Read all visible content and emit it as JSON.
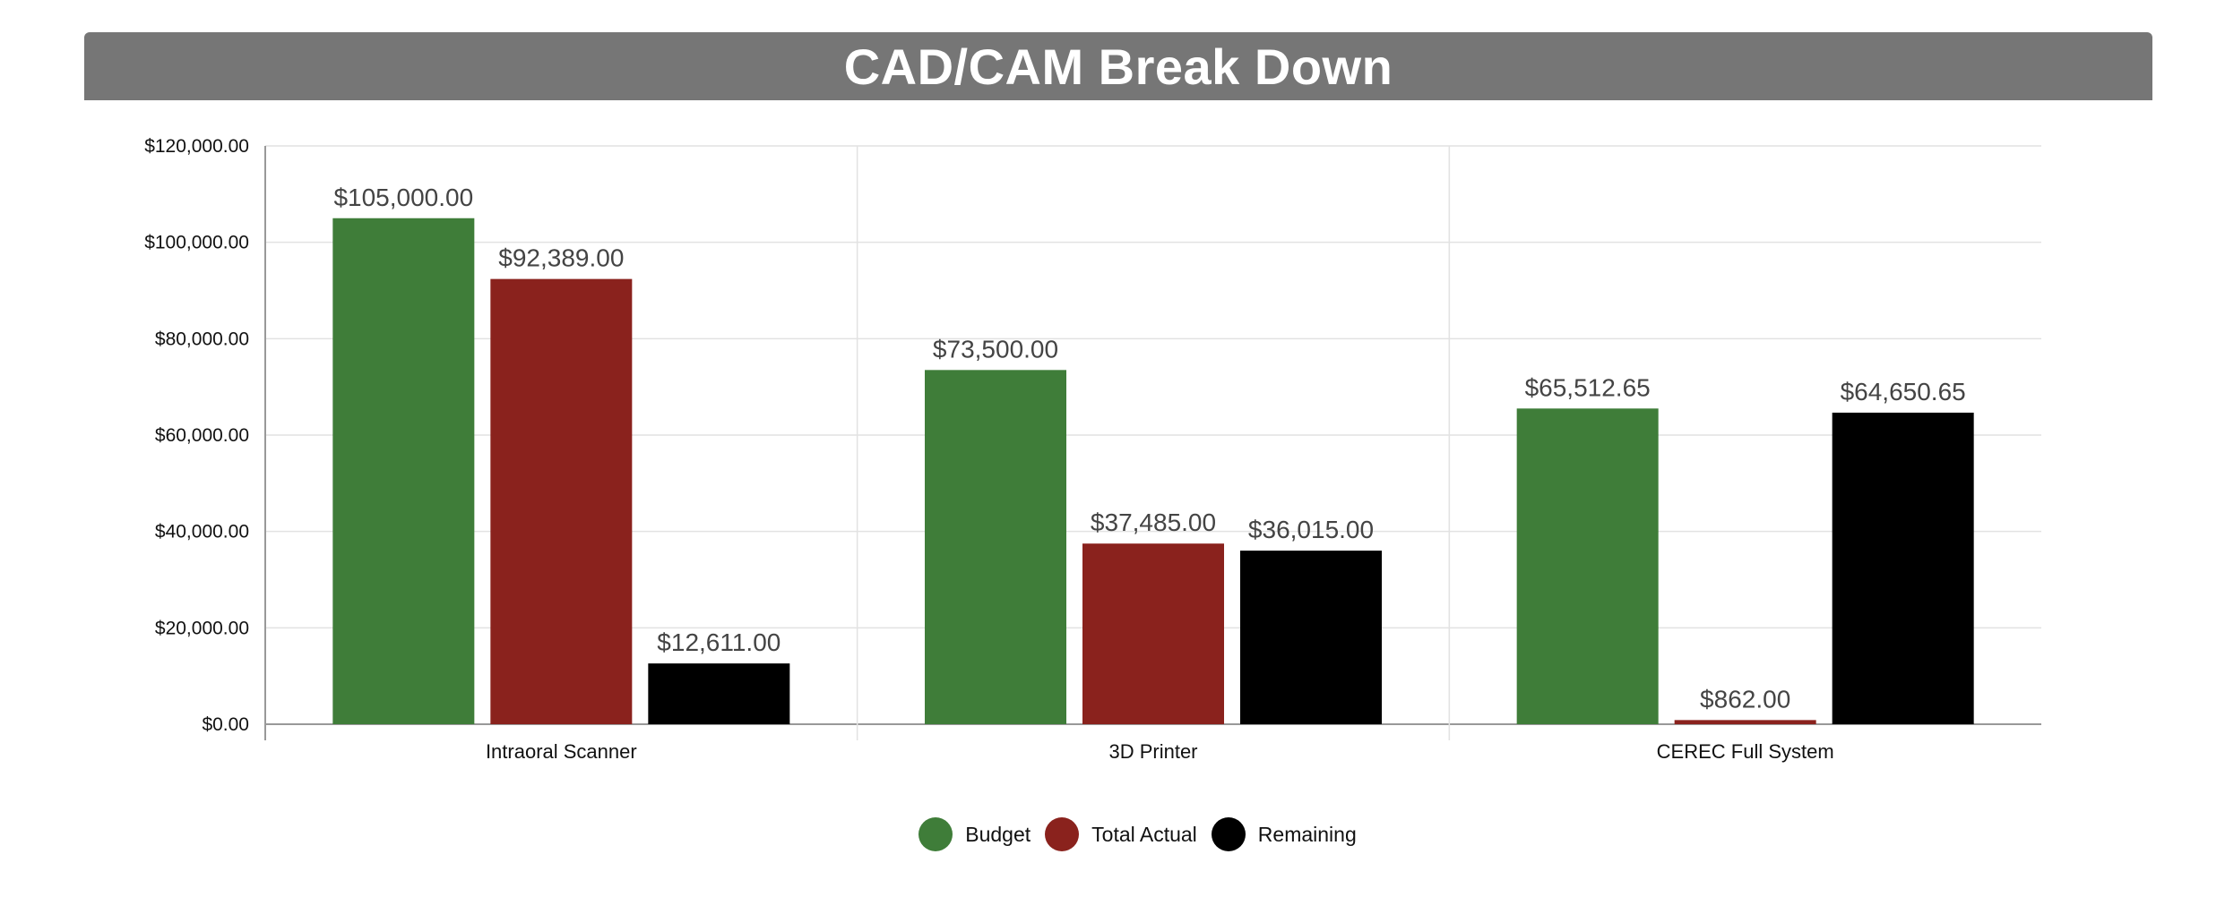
{
  "header": {
    "title": "CAD/CAM Break Down"
  },
  "colors": {
    "Budget": "#3f7d39",
    "Total Actual": "#8a221d",
    "Remaining": "#000000",
    "title_bar": "#767676"
  },
  "chart_data": {
    "type": "bar",
    "title": "CAD/CAM Break Down",
    "categories": [
      "Intraoral Scanner",
      "3D Printer",
      "CEREC Full System"
    ],
    "series": [
      {
        "name": "Budget",
        "values": [
          105000.0,
          73500.0,
          65512.65
        ],
        "labels": [
          "$105,000.00",
          "$73,500.00",
          "$65,512.65"
        ]
      },
      {
        "name": "Total Actual",
        "values": [
          92389.0,
          37485.0,
          862.0
        ],
        "labels": [
          "$92,389.00",
          "$37,485.00",
          "$862.00"
        ]
      },
      {
        "name": "Remaining",
        "values": [
          12611.0,
          36015.0,
          64650.65
        ],
        "labels": [
          "$12,611.00",
          "$36,015.00",
          "$64,650.65"
        ]
      }
    ],
    "ylim": [
      0,
      120000
    ],
    "y_ticks": [
      0,
      20000,
      40000,
      60000,
      80000,
      100000,
      120000
    ],
    "y_tick_labels": [
      "$0.00",
      "$20,000.00",
      "$40,000.00",
      "$60,000.00",
      "$80,000.00",
      "$100,000.00",
      "$120,000.00"
    ],
    "xlabel": "",
    "ylabel": "",
    "grid": true,
    "legend_position": "bottom-center"
  }
}
